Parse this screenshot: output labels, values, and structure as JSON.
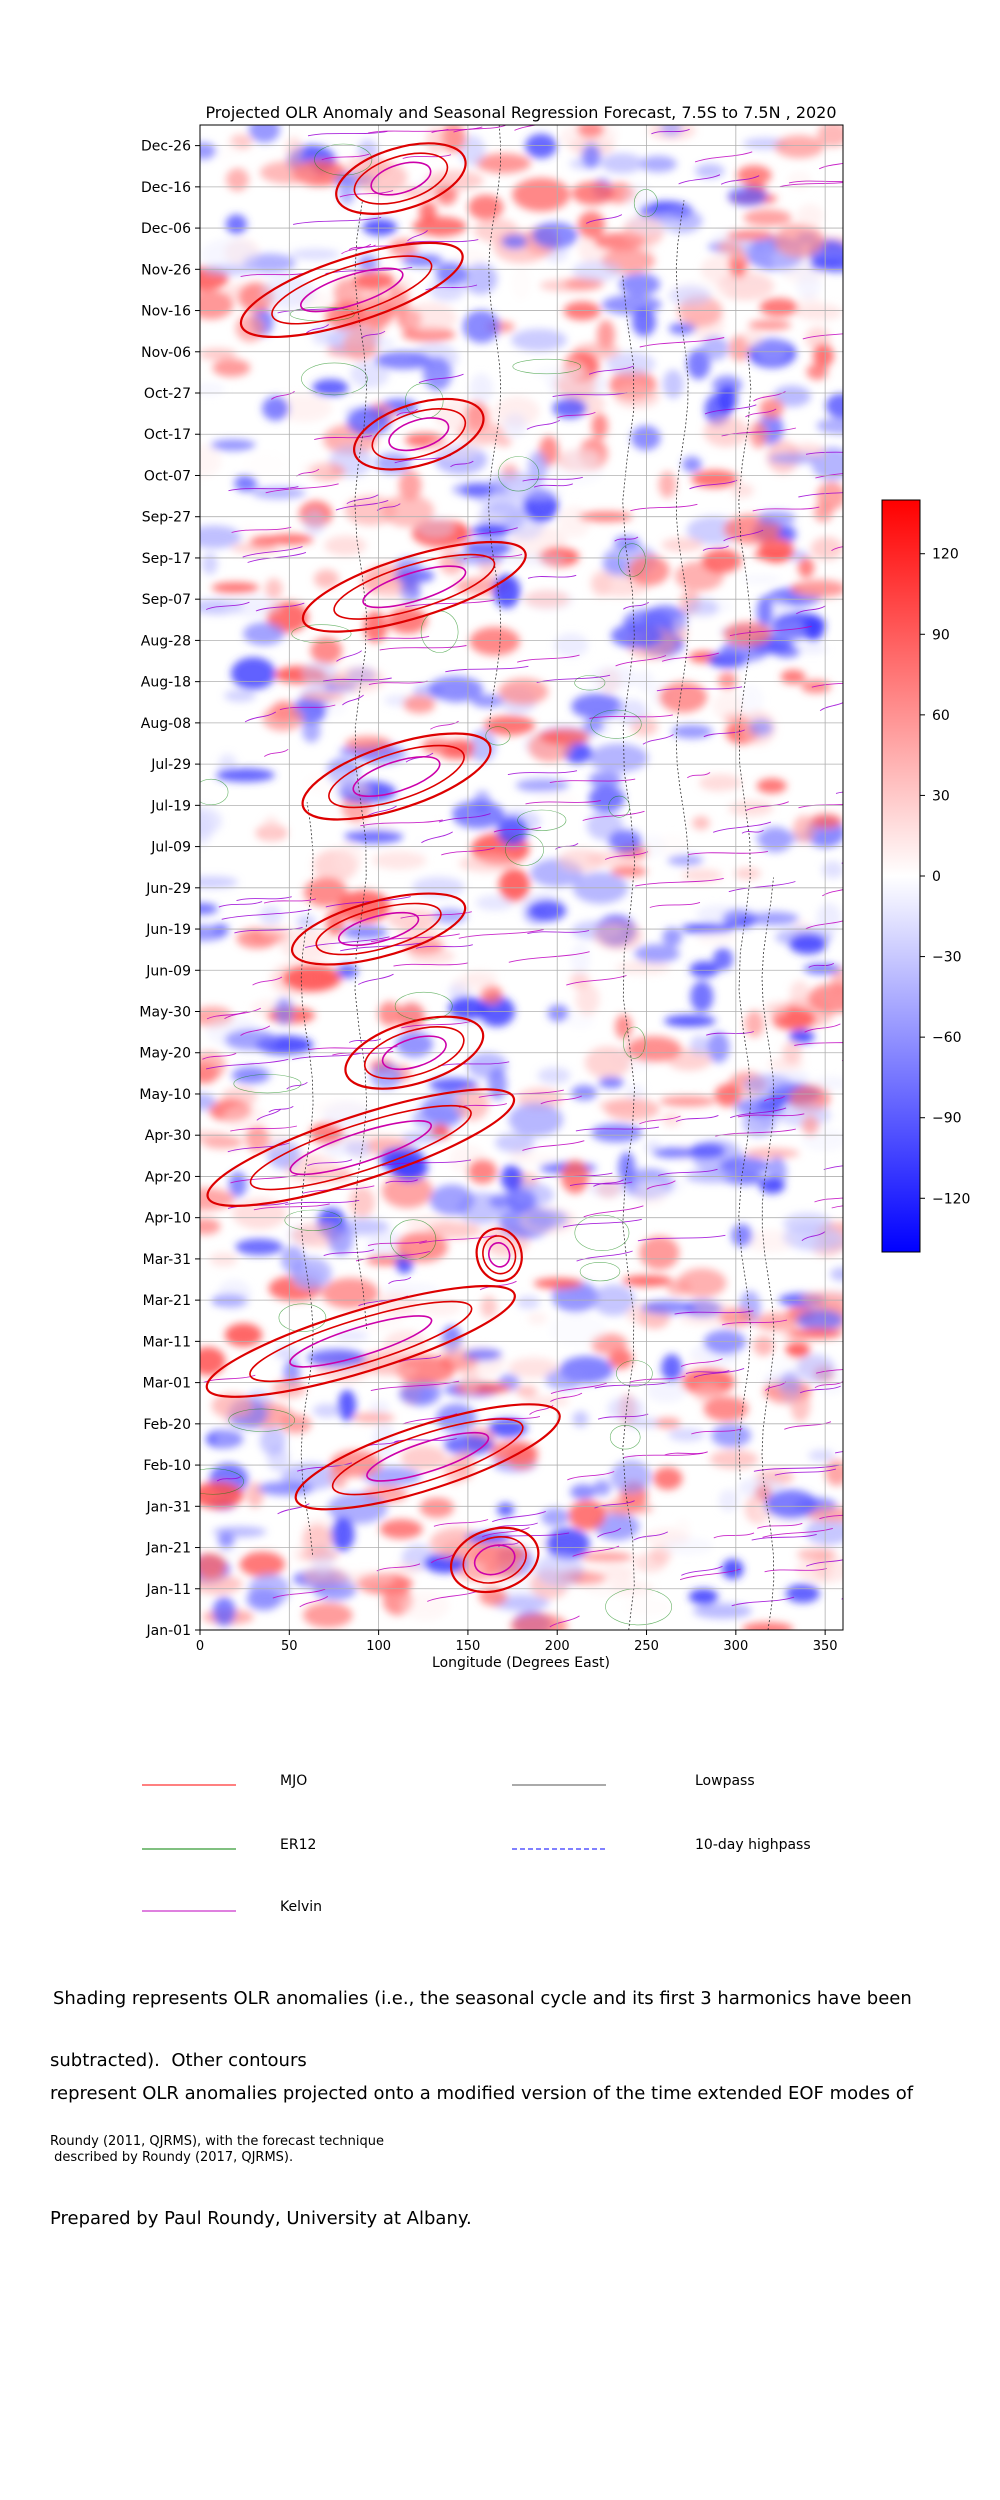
{
  "chart_data": [
    {
      "type": "heatmap",
      "title": "Projected OLR Anomaly and Seasonal Regression Forecast, 7.5S to 7.5N , 2020",
      "xlabel": "Longitude (Degrees East)",
      "ylabel": "",
      "xlim": [
        0,
        360
      ],
      "x_ticks": [
        0,
        50,
        100,
        150,
        200,
        250,
        300,
        350
      ],
      "y_ticks": [
        "Jan-01",
        "Jan-11",
        "Jan-21",
        "Jan-31",
        "Feb-10",
        "Feb-20",
        "Mar-01",
        "Mar-11",
        "Mar-21",
        "Mar-31",
        "Apr-10",
        "Apr-20",
        "Apr-30",
        "May-10",
        "May-20",
        "May-30",
        "Jun-09",
        "Jun-19",
        "Jun-29",
        "Jul-09",
        "Jul-19",
        "Jul-29",
        "Aug-08",
        "Aug-18",
        "Aug-28",
        "Sep-07",
        "Sep-17",
        "Sep-27",
        "Oct-07",
        "Oct-17",
        "Oct-27",
        "Nov-06",
        "Nov-16",
        "Nov-26",
        "Dec-06",
        "Dec-16",
        "Dec-26"
      ],
      "grid": true,
      "colorbar": {
        "range": [
          -140,
          140
        ],
        "ticks": [
          120,
          90,
          60,
          30,
          0,
          -30,
          -60,
          -90,
          -120
        ],
        "tick_labels": [
          "120",
          "90",
          "60",
          "30",
          "0",
          "−30",
          "−60",
          "−90",
          "−120"
        ],
        "negative_color": "#0000ff",
        "positive_color": "#ff0000",
        "zero_color": "#ffffff"
      },
      "mjo_envelopes": [
        {
          "day": 17,
          "lon_start": 140,
          "lon_end": 190,
          "strength": 0.9
        },
        {
          "day": 42,
          "lon_start": 50,
          "lon_end": 205,
          "strength": 1.0
        },
        {
          "day": 70,
          "lon_start": 0,
          "lon_end": 180,
          "strength": 0.9
        },
        {
          "day": 91,
          "lon_start": 155,
          "lon_end": 180,
          "strength": 0.6
        },
        {
          "day": 117,
          "lon_start": 0,
          "lon_end": 180,
          "strength": 1.0
        },
        {
          "day": 140,
          "lon_start": 80,
          "lon_end": 160,
          "strength": 0.9
        },
        {
          "day": 170,
          "lon_start": 50,
          "lon_end": 150,
          "strength": 0.7
        },
        {
          "day": 207,
          "lon_start": 55,
          "lon_end": 165,
          "strength": 1.0
        },
        {
          "day": 253,
          "lon_start": 55,
          "lon_end": 185,
          "strength": 0.9
        },
        {
          "day": 290,
          "lon_start": 85,
          "lon_end": 160,
          "strength": 0.9
        },
        {
          "day": 325,
          "lon_start": 20,
          "lon_end": 150,
          "strength": 1.0
        },
        {
          "day": 352,
          "lon_start": 75,
          "lon_end": 150,
          "strength": 0.9
        }
      ]
    }
  ],
  "legend": {
    "items": [
      {
        "label": "MJO",
        "color": "#ff0000",
        "dash": "solid"
      },
      {
        "label": "Lowpass",
        "color": "#555555",
        "dash": "solid"
      },
      {
        "label": "ER12",
        "color": "#008000",
        "dash": "solid"
      },
      {
        "label": "10-day highpass",
        "color": "#0000ff",
        "dash": "dashed"
      },
      {
        "label": "Kelvin",
        "color": "#bf00bf",
        "dash": "solid"
      }
    ]
  },
  "caption": {
    "line1": "Shading represents OLR anomalies (i.e., the seasonal cycle and its first 3 harmonics have been",
    "line2": "subtracted).  Other contours",
    "line3": "represent OLR anomalies projected onto a modified version of the time extended EOF modes of",
    "line4": "Roundy (2011, QJRMS), with the forecast technique\n described by Roundy (2017, QJRMS).",
    "line5": "Prepared by Paul Roundy, University at Albany."
  }
}
